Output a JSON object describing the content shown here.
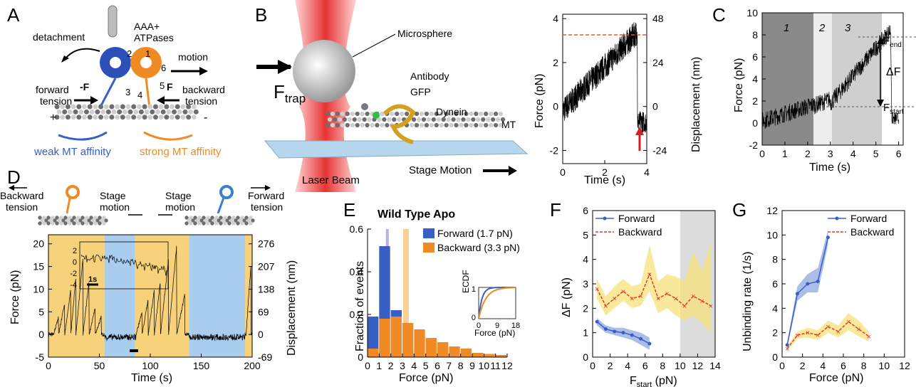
{
  "panels": {
    "A": "A",
    "B": "B",
    "C": "C",
    "D": "D",
    "E": "E",
    "F": "F",
    "G": "G"
  },
  "colors": {
    "blue": "#3a5fc4",
    "orange": "#f08a24",
    "yellow_bg": "#f7d27b",
    "blue_bg": "#a9cdee",
    "gray": "#dcdcdc",
    "red": "#d81e1e"
  },
  "panelA": {
    "aaa": "AAA+",
    "atpases": "ATPases",
    "detachment": "detachment",
    "motion": "motion",
    "forward_tension": "forward",
    "forward_tension2": "tension",
    "backward_tension": "backward",
    "backward_tension2": "tension",
    "minusF": "-F",
    "F": "F",
    "plus": "+",
    "minus": "-",
    "weak": "weak MT affinity",
    "strong": "strong MT affinity",
    "nums": [
      "2",
      "1",
      "6",
      "3",
      "4",
      "5"
    ]
  },
  "panelB": {
    "microsphere": "Microsphere",
    "antibody": "Antibody",
    "gfp": "GFP",
    "dynein": "Dynein",
    "mt": "MT",
    "ftrap": "F",
    "ftrap_sub": "trap",
    "laser": "Laser Beam",
    "stage": "Stage Motion",
    "trace": {
      "xlabel": "Time (s)",
      "ylabel": "Force (pN)",
      "y2label": "Displacement (nm)",
      "xticks": [
        "0",
        "2",
        "4"
      ],
      "yticks": [
        "-2",
        "0",
        "2",
        "4"
      ],
      "y2ticks": [
        "-24",
        "0",
        "24",
        "48"
      ]
    }
  },
  "panelC": {
    "xlabel": "Time (s)",
    "ylabel": "Force (pN)",
    "xticks": [
      "0",
      "1",
      "2",
      "3",
      "4",
      "5",
      "6"
    ],
    "yticks": [
      "-2",
      "0",
      "2",
      "4",
      "6",
      "8",
      "10"
    ],
    "regions": [
      "1",
      "2",
      "3"
    ],
    "fend": "F",
    "fend_sub": "end",
    "fstart": "F",
    "fstart_sub": "start",
    "deltaF": "ΔF"
  },
  "panelD": {
    "backward": "Backward",
    "backward2": "tension",
    "stage": "Stage",
    "stage2": "motion",
    "forward": "Forward",
    "forward2": "tension",
    "xlabel": "Time (s)",
    "ylabel": "Force (pN)",
    "y2label": "Displacement (nm)",
    "xticks": [
      "0",
      "50",
      "100",
      "150",
      "200"
    ],
    "yticks": [
      "-5",
      "0",
      "5",
      "10",
      "15",
      "20"
    ],
    "y2ticks": [
      "-69",
      "0",
      "69",
      "138",
      "207",
      "276"
    ],
    "inset_yticks": [
      "2",
      "0",
      "-2",
      "-4"
    ],
    "inset_scale": "1s"
  },
  "panelE": {
    "title": "Wild Type  Apo",
    "xlabel": "Force (pN)",
    "ylabel": "Fraction of events",
    "legend": [
      "Forward (1.7 pN)",
      "Backward (3.3 pN)"
    ],
    "inset_ylabel": "ECDF",
    "inset_xlabel": "Force (pN)",
    "inset_xticks": [
      "0",
      "9",
      "18"
    ],
    "inset_yticks": [
      "1",
      "0"
    ]
  },
  "panelF": {
    "xlabel": "F",
    "xlabel_sub": "start",
    "xlabel_unit": " (pN)",
    "ylabel": "ΔF (pN)",
    "legend": [
      "Forward",
      "Backward"
    ]
  },
  "panelG": {
    "xlabel": "Force (pN)",
    "ylabel": "Unbinding rate (1/s)",
    "legend": [
      "Forward",
      "Backward"
    ]
  },
  "chart_data": [
    {
      "id": "E",
      "type": "bar",
      "x": [
        0,
        1,
        2,
        3,
        4,
        5,
        6,
        7,
        8,
        9,
        10,
        11,
        12
      ],
      "xlim": [
        0,
        12
      ],
      "ylim": [
        0,
        0.6
      ],
      "yticks": [
        0,
        0.2,
        0.4,
        0.6
      ],
      "series": [
        {
          "name": "Forward (1.7 pN)",
          "x": [
            0.5,
            1.5,
            2.5,
            3.5
          ],
          "values": [
            0.19,
            0.52,
            0.22,
            0.03
          ]
        },
        {
          "name": "Backward (3.3 pN)",
          "x": [
            0.5,
            1.5,
            2.5,
            3.5,
            4.5,
            5.5,
            6.5,
            7.5,
            8.5,
            9.5,
            10.5,
            11.5
          ],
          "values": [
            0.04,
            0.18,
            0.19,
            0.16,
            0.13,
            0.09,
            0.07,
            0.05,
            0.04,
            0.02,
            0.015,
            0.01
          ]
        }
      ],
      "medians": [
        1.7,
        3.3
      ]
    },
    {
      "id": "F",
      "type": "line",
      "xlim": [
        0,
        14
      ],
      "ylim": [
        0,
        6
      ],
      "xticks": [
        0,
        2,
        4,
        6,
        8,
        10,
        12,
        14
      ],
      "yticks": [
        0,
        1,
        2,
        3,
        4,
        5,
        6
      ],
      "shaded_region": [
        10,
        14
      ],
      "series": [
        {
          "name": "Forward",
          "x": [
            0.5,
            1.5,
            2.5,
            3.5,
            4.5,
            5.5,
            6.5
          ],
          "values": [
            1.45,
            1.15,
            1.05,
            1.0,
            0.9,
            0.75,
            0.55
          ],
          "lower": [
            1.3,
            1.0,
            0.9,
            0.8,
            0.7,
            0.5,
            0.3
          ],
          "upper": [
            1.6,
            1.3,
            1.2,
            1.2,
            1.1,
            1.0,
            0.8
          ]
        },
        {
          "name": "Backward",
          "x": [
            0.5,
            1.5,
            2.5,
            3.5,
            4.5,
            5.5,
            6.5,
            7.5,
            8.5,
            9.5,
            10.5,
            11.5,
            12.5,
            13.5
          ],
          "values": [
            2.8,
            2.1,
            2.4,
            2.7,
            2.4,
            2.5,
            3.4,
            2.4,
            2.6,
            2.4,
            2.1,
            2.5,
            2.3,
            2.1
          ],
          "lower": [
            2.4,
            1.7,
            2.0,
            2.3,
            2.0,
            2.1,
            2.7,
            1.8,
            2.0,
            1.7,
            1.5,
            1.7,
            1.4,
            1.0
          ],
          "upper": [
            3.2,
            2.5,
            2.9,
            3.2,
            2.9,
            3.0,
            4.6,
            3.1,
            3.4,
            3.3,
            3.1,
            4.3,
            3.5,
            4.7
          ]
        }
      ]
    },
    {
      "id": "G",
      "type": "line",
      "xlim": [
        0,
        12
      ],
      "ylim": [
        0,
        12
      ],
      "xticks": [
        0,
        2,
        4,
        6,
        8,
        10,
        12
      ],
      "yticks": [
        0,
        2,
        4,
        6,
        8,
        10,
        12
      ],
      "series": [
        {
          "name": "Forward",
          "x": [
            0.5,
            1.5,
            2.5,
            3.5,
            4.5
          ],
          "values": [
            1.0,
            5.2,
            6.0,
            6.2,
            9.8
          ],
          "lower": [
            0.8,
            4.6,
            5.3,
            5.3,
            9.2
          ],
          "upper": [
            1.2,
            5.8,
            6.8,
            7.3,
            10.4
          ]
        },
        {
          "name": "Backward",
          "x": [
            0.5,
            1.5,
            2.5,
            3.5,
            4.5,
            5.5,
            6.5,
            7.5,
            8.5
          ],
          "values": [
            0.7,
            1.8,
            2.0,
            1.8,
            2.5,
            2.1,
            2.9,
            2.3,
            1.7
          ],
          "lower": [
            0.5,
            1.5,
            1.6,
            1.4,
            2.0,
            1.6,
            2.2,
            1.7,
            1.3
          ],
          "upper": [
            0.9,
            2.1,
            2.4,
            2.2,
            3.0,
            2.6,
            3.6,
            3.0,
            2.1
          ]
        }
      ]
    }
  ]
}
